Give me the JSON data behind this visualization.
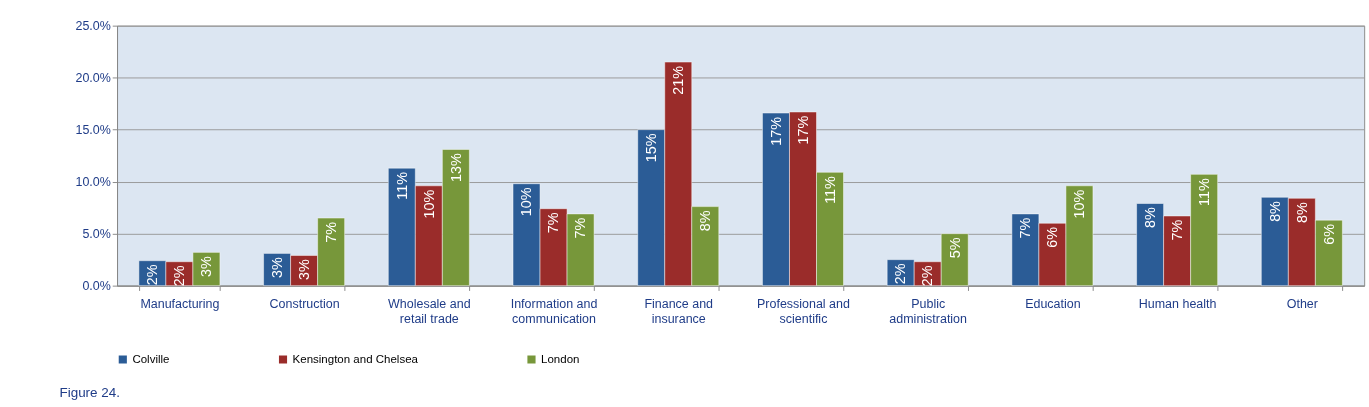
{
  "chart_data": {
    "type": "bar",
    "categories": [
      "Manufacturing",
      "Construction",
      "Wholesale and retail trade",
      "Information and communication",
      "Finance and insurance",
      "Professional and scientific",
      "Public administration",
      "Education",
      "Human health",
      "Other"
    ],
    "series": [
      {
        "name": "Colville",
        "color": "#2b5c96",
        "values": [
          2.4,
          3.1,
          11.3,
          9.8,
          15.0,
          16.6,
          2.5,
          6.9,
          7.9,
          8.5
        ],
        "value_labels": [
          "2%",
          "3%",
          "11%",
          "10%",
          "15%",
          "17%",
          "2%",
          "7%",
          "8%",
          "8%"
        ]
      },
      {
        "name": "Kensington and Chelsea",
        "color": "#9a2c2a",
        "values": [
          2.3,
          2.9,
          9.6,
          7.4,
          21.5,
          16.7,
          2.3,
          6.0,
          6.7,
          8.4
        ],
        "value_labels": [
          "2%",
          "3%",
          "10%",
          "7%",
          "21%",
          "17%",
          "2%",
          "6%",
          "7%",
          "8%"
        ]
      },
      {
        "name": "London",
        "color": "#77973a",
        "values": [
          3.2,
          6.5,
          13.1,
          6.9,
          7.6,
          10.9,
          5.0,
          9.6,
          10.7,
          6.3
        ],
        "value_labels": [
          "3%",
          "7%",
          "13%",
          "7%",
          "8%",
          "11%",
          "5%",
          "10%",
          "11%",
          "6%"
        ]
      }
    ],
    "ylim": [
      0,
      25
    ],
    "yticks": [
      {
        "value": 0,
        "label": "0.0%"
      },
      {
        "value": 5,
        "label": "5.0%"
      },
      {
        "value": 10,
        "label": "10.0%"
      },
      {
        "value": 15,
        "label": "15.0%"
      },
      {
        "value": 20,
        "label": "20.0%"
      },
      {
        "value": 25,
        "label": "25.0%"
      }
    ],
    "grid": "y",
    "legend": "bottom",
    "annotations": [
      "Figure 24."
    ]
  }
}
